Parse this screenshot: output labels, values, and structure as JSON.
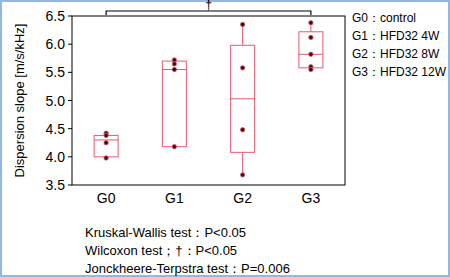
{
  "chart_data": {
    "type": "box",
    "y_label": "Dispersion slope [m/s/kHz]",
    "categories": [
      "G0",
      "G1",
      "G2",
      "G3"
    ],
    "boxes": [
      {
        "min": 3.98,
        "q1": 4.0,
        "median": 4.3,
        "q3": 4.38,
        "max": 4.42
      },
      {
        "min": 4.18,
        "q1": 4.18,
        "median": 5.55,
        "q3": 5.7,
        "max": 5.72
      },
      {
        "min": 3.68,
        "q1": 4.08,
        "median": 5.03,
        "q3": 5.98,
        "max": 6.35
      },
      {
        "min": 5.55,
        "q1": 5.58,
        "median": 5.82,
        "q3": 6.22,
        "max": 6.38
      }
    ],
    "points": [
      [
        4.42,
        4.38,
        4.25,
        3.98
      ],
      [
        5.72,
        5.65,
        5.55,
        4.18
      ],
      [
        6.35,
        5.58,
        4.48,
        3.68
      ],
      [
        6.38,
        6.12,
        5.82,
        5.6,
        5.55
      ]
    ],
    "color": "#e8596e",
    "ylim": [
      3.5,
      6.5
    ],
    "yticks": [
      3.5,
      {
        "value": 4,
        "label": "4.0"
      },
      4.5,
      {
        "value": 5,
        "label": "5.0"
      },
      5.5,
      {
        "value": 6,
        "label": "6.0"
      },
      6.5
    ],
    "legend_entries": [
      "G0：control",
      "G1：HFD32 4W",
      "G2：HFD32 8W",
      "G3：HFD32 12W"
    ],
    "notes": [
      "Kruskal-Wallis test：P<0.05",
      "Wilcoxon test；†：P<0.05",
      "Jonckheere-Terpstra test：P=0.006"
    ],
    "bracket": {
      "from": "G0",
      "to": "G3",
      "label": "†"
    }
  }
}
